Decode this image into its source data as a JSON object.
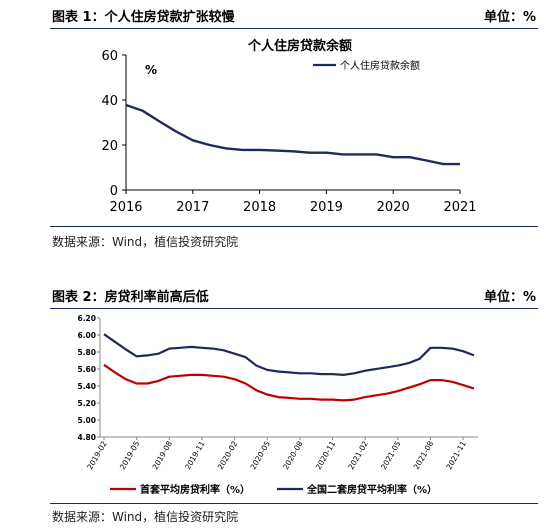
{
  "figure1": {
    "caption": "图表 1：个人住房贷款扩张较慢",
    "unit": "单位：%",
    "source": "数据来源：Wind，植信投资研究院"
  },
  "figure2": {
    "caption": "图表 2：房贷利率前高后低",
    "unit": "单位：%",
    "source": "数据来源：Wind，植信投资研究院"
  },
  "chart_data": [
    {
      "type": "line",
      "title": "个人住房贷款余额",
      "ylabel": "%",
      "ylim": [
        0,
        60
      ],
      "yticks": [
        0,
        20,
        40,
        60
      ],
      "xlim": [
        2016,
        2021
      ],
      "xticks": [
        2016,
        2017,
        2018,
        2019,
        2020,
        2021
      ],
      "grid": false,
      "legend": "top-right",
      "series": [
        {
          "name": "个人住房贷款余额",
          "color": "#1f2a5a",
          "x": [
            2016.0,
            2016.25,
            2016.5,
            2016.75,
            2017.0,
            2017.25,
            2017.5,
            2017.75,
            2018.0,
            2018.25,
            2018.5,
            2018.75,
            2019.0,
            2019.25,
            2019.5,
            2019.75,
            2020.0,
            2020.25,
            2020.5,
            2020.75,
            2021.0
          ],
          "values": [
            37.8,
            35.2,
            30.5,
            26.0,
            22.1,
            20.0,
            18.5,
            17.8,
            17.8,
            17.5,
            17.2,
            16.6,
            16.6,
            15.8,
            15.8,
            15.8,
            14.6,
            14.6,
            13.1,
            11.5,
            11.5
          ]
        }
      ]
    },
    {
      "type": "line",
      "ylim": [
        4.8,
        6.2
      ],
      "yticks": [
        "4.80",
        "5.00",
        "5.20",
        "5.40",
        "5.60",
        "5.80",
        "6.00",
        "6.20"
      ],
      "categories": [
        "2019-02",
        "2019-03",
        "2019-04",
        "2019-05",
        "2019-06",
        "2019-07",
        "2019-08",
        "2019-09",
        "2019-10",
        "2019-11",
        "2019-12",
        "2020-01",
        "2020-02",
        "2020-03",
        "2020-04",
        "2020-05",
        "2020-06",
        "2020-07",
        "2020-08",
        "2020-09",
        "2020-10",
        "2020-11",
        "2020-12",
        "2021-01",
        "2021-02",
        "2021-03",
        "2021-04",
        "2021-05",
        "2021-06",
        "2021-07",
        "2021-08",
        "2021-09",
        "2021-10",
        "2021-11",
        "2021-12"
      ],
      "xticklabels": [
        "2019-02",
        "2019-05",
        "2019-08",
        "2019-11",
        "2020-02",
        "2020-05",
        "2020-08",
        "2020-11",
        "2021-02",
        "2021-05",
        "2021-08",
        "2021-11"
      ],
      "grid": false,
      "legend": "bottom",
      "series": [
        {
          "name": "首套平均房贷利率（%）",
          "color": "#c00000",
          "values": [
            5.65,
            5.56,
            5.48,
            5.43,
            5.43,
            5.46,
            5.51,
            5.52,
            5.53,
            5.53,
            5.52,
            5.51,
            5.48,
            5.43,
            5.35,
            5.3,
            5.27,
            5.26,
            5.25,
            5.25,
            5.24,
            5.24,
            5.23,
            5.24,
            5.27,
            5.29,
            5.31,
            5.34,
            5.38,
            5.42,
            5.47,
            5.47,
            5.45,
            5.41,
            5.37
          ]
        },
        {
          "name": "全国二套房贷平均利率（%）",
          "color": "#1f2a5a",
          "values": [
            6.01,
            5.92,
            5.83,
            5.75,
            5.76,
            5.78,
            5.84,
            5.85,
            5.86,
            5.85,
            5.84,
            5.82,
            5.78,
            5.74,
            5.64,
            5.59,
            5.57,
            5.56,
            5.55,
            5.55,
            5.54,
            5.54,
            5.53,
            5.55,
            5.58,
            5.6,
            5.62,
            5.64,
            5.67,
            5.72,
            5.85,
            5.85,
            5.84,
            5.81,
            5.76
          ]
        }
      ]
    }
  ]
}
